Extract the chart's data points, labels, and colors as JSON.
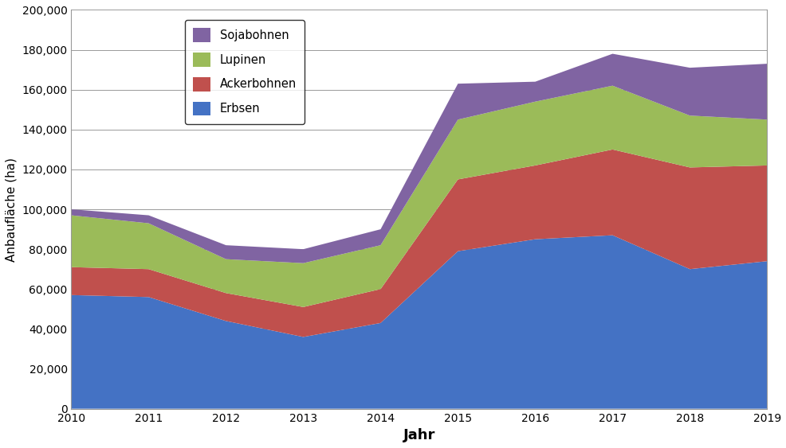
{
  "years": [
    2010,
    2011,
    2012,
    2013,
    2014,
    2015,
    2016,
    2017,
    2018,
    2019
  ],
  "erbsen": [
    57000,
    56000,
    44000,
    36000,
    43000,
    79000,
    85000,
    87000,
    70000,
    74000
  ],
  "ackerbohnen": [
    14000,
    14000,
    14000,
    15000,
    17000,
    36000,
    37000,
    43000,
    51000,
    48000
  ],
  "lupinen": [
    26000,
    23000,
    17000,
    22000,
    22000,
    30000,
    32000,
    32000,
    26000,
    23000
  ],
  "sojabohnen": [
    3000,
    4000,
    7000,
    7000,
    8000,
    18000,
    10000,
    16000,
    24000,
    28000
  ],
  "colors": {
    "erbsen": "#4472C4",
    "ackerbohnen": "#C0504D",
    "lupinen": "#9BBB59",
    "sojabohnen": "#8064A2"
  },
  "ylabel": "Anbaufläche (ha)",
  "xlabel": "Jahr",
  "ylim": [
    0,
    200000
  ],
  "yticks": [
    0,
    20000,
    40000,
    60000,
    80000,
    100000,
    120000,
    140000,
    160000,
    180000,
    200000
  ],
  "ytick_labels": [
    "0",
    "20,000",
    "40,000",
    "60,000",
    "80,000",
    "100,000",
    "120,000",
    "140,000",
    "160,000",
    "180,000",
    "200,000"
  ],
  "background_color": "#ffffff",
  "figsize": [
    9.87,
    5.63
  ],
  "dpi": 100
}
